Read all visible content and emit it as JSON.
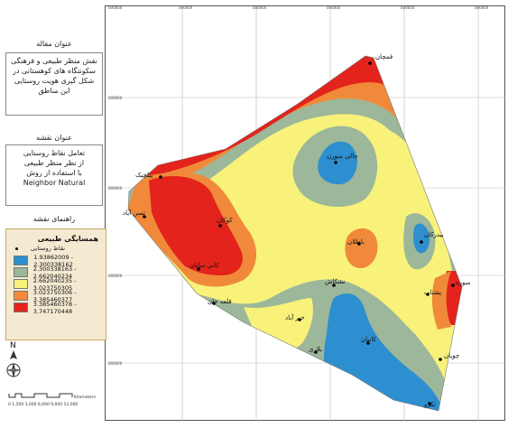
{
  "panel": {
    "article_title": "عنوان مقاله",
    "article_text": "نقش منظر طبیعی و فرهنگی سکونتگاه های کوهستانی در شکل گیری هویت روستایی این مناطق",
    "map_title": "عنوان نقشه",
    "map_text_1": "تعامل نقاط روستایی",
    "map_text_2": "از نظر منظر طبیعی",
    "map_text_3": "با استفاده از روش",
    "map_text_4": "Neighbor Natural",
    "guide_title": "راهنمای نقشه"
  },
  "legend": {
    "title": "همسایگی طبیعی",
    "point_label": "نقاط روستایی",
    "classes": [
      {
        "label": "1.93862009 - 2.300338162",
        "color": "#2e8fd0"
      },
      {
        "label": "2.300338163 - 2.662040234",
        "color": "#9cb79a"
      },
      {
        "label": "2.662040235 - 3.023750305",
        "color": "#f8f27a"
      },
      {
        "label": "3.023750306 - 3.385460377",
        "color": "#f08a3a"
      },
      {
        "label": "3.385460378 - 3.747170448",
        "color": "#e3231c"
      }
    ]
  },
  "north": {
    "letter": "N"
  },
  "scale": {
    "ticks": "0 1,500 3,000    6,000    9,000    12,000",
    "unit": "Kilometers"
  },
  "coords_top": [
    "000000",
    "000000",
    "000000",
    "000000",
    "000000",
    "000000"
  ],
  "coords_left": [
    "000000",
    "000000",
    "000000",
    "000000"
  ],
  "villages": [
    {
      "name": "قمچان"
    },
    {
      "name": "چالی سورن"
    },
    {
      "name": "پیلچیک"
    },
    {
      "name": "تسن آباد"
    },
    {
      "name": "کوکان"
    },
    {
      "name": "کانی سانان"
    },
    {
      "name": "باطلان"
    },
    {
      "name": "بیدرکان"
    },
    {
      "name": "سوره"
    },
    {
      "name": "پشتاب"
    },
    {
      "name": "نشکاش"
    },
    {
      "name": "قلعه جان"
    },
    {
      "name": "خیر آباد"
    },
    {
      "name": "کانیان"
    },
    {
      "name": "بلاری"
    },
    {
      "name": "چوپان"
    },
    {
      "name": "تکرو"
    }
  ]
}
